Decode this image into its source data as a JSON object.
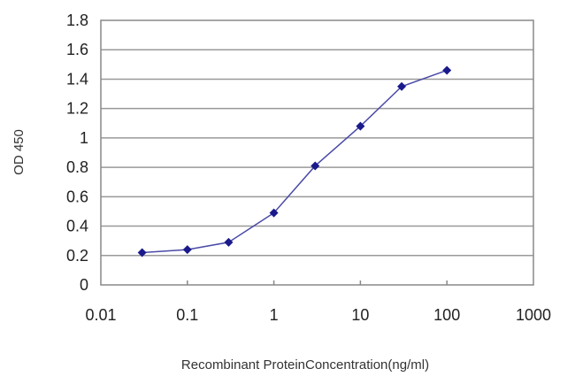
{
  "chart_data": {
    "type": "line",
    "title": "",
    "xlabel": "Recombinant ProteinConcentration(ng/ml)",
    "ylabel": "OD 450",
    "x_scale": "log",
    "xlim": [
      0.01,
      1000
    ],
    "ylim": [
      0,
      1.8
    ],
    "x_ticks": [
      "0.01",
      "0.1",
      "1",
      "10",
      "100",
      "1000"
    ],
    "y_ticks": [
      "0",
      "0.2",
      "0.4",
      "0.6",
      "0.8",
      "1",
      "1.2",
      "1.4",
      "1.6",
      "1.8"
    ],
    "grid": "horizontal",
    "series": [
      {
        "color": "#1a1a8c",
        "x": [
          0.03,
          0.1,
          0.3,
          1,
          3,
          10,
          30,
          100
        ],
        "y": [
          0.22,
          0.24,
          0.29,
          0.49,
          0.81,
          1.08,
          1.35,
          1.46
        ]
      }
    ]
  }
}
